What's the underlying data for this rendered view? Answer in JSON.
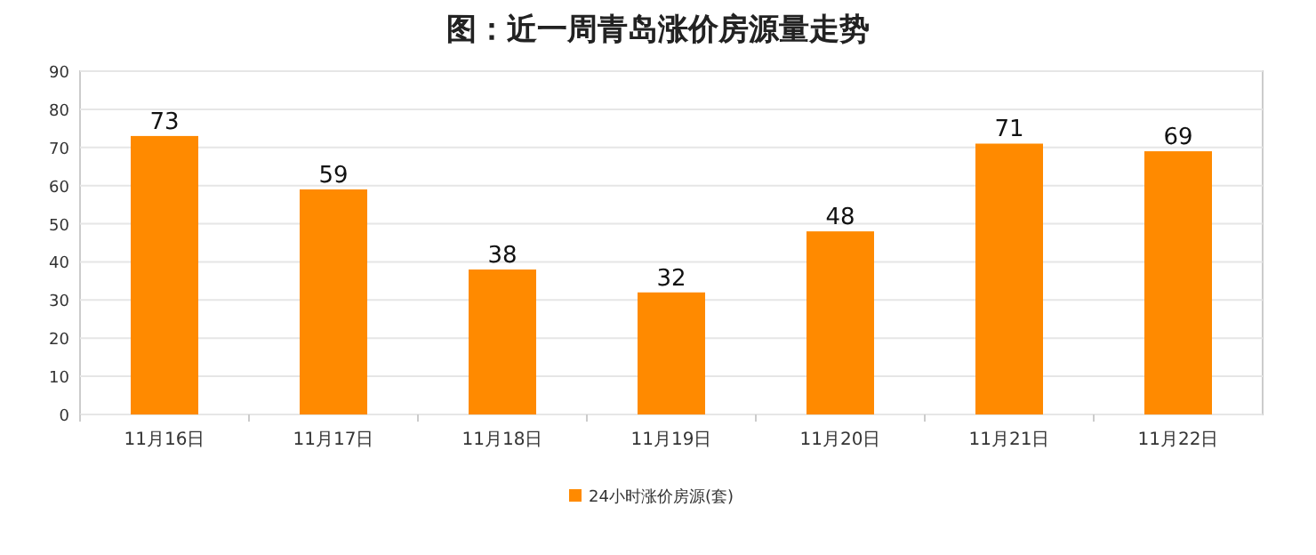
{
  "chart_data": {
    "type": "bar",
    "title": "图：近一周青岛涨价房源量走势",
    "categories": [
      "11月16日",
      "11月17日",
      "11月18日",
      "11月19日",
      "11月20日",
      "11月21日",
      "11月22日"
    ],
    "series": [
      {
        "name": "24小时涨价房源(套)",
        "color": "#ff8a00",
        "values": [
          73,
          59,
          38,
          32,
          48,
          71,
          69
        ]
      }
    ],
    "ylim": [
      0,
      90
    ],
    "yticks": [
      0,
      10,
      20,
      30,
      40,
      50,
      60,
      70,
      80,
      90
    ],
    "grid": "y",
    "legend": "bottom",
    "data_labels": true
  }
}
